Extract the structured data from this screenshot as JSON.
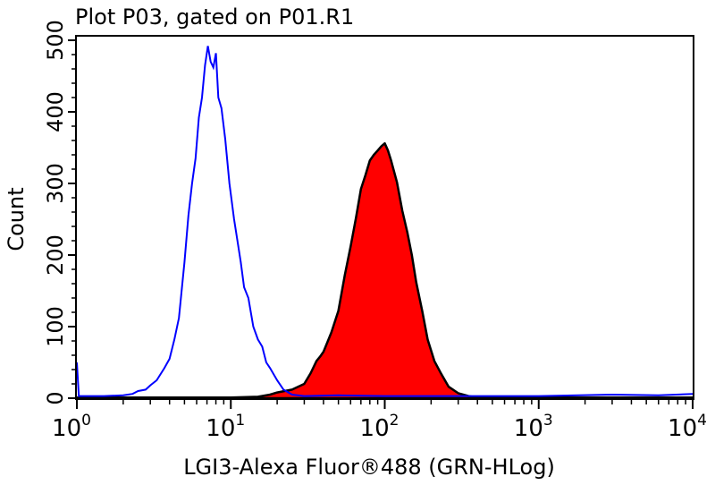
{
  "chart_data": {
    "type": "area",
    "title": "Plot P03, gated on P01.R1",
    "xlabel": "LGI3-Alexa Fluor®488 (GRN-HLog)",
    "ylabel": "Count",
    "xscale": "log",
    "xlim": [
      1,
      10000
    ],
    "ylim": [
      0,
      500
    ],
    "x_ticks": [
      {
        "base": "10",
        "exp": "0",
        "value": 1
      },
      {
        "base": "10",
        "exp": "1",
        "value": 10
      },
      {
        "base": "10",
        "exp": "2",
        "value": 100
      },
      {
        "base": "10",
        "exp": "3",
        "value": 1000
      },
      {
        "base": "10",
        "exp": "4",
        "value": 10000
      }
    ],
    "y_ticks": [
      "0",
      "100",
      "200",
      "300",
      "400",
      "500"
    ],
    "grid": false,
    "series": [
      {
        "style": "outline",
        "color": "#0000ff",
        "points": [
          [
            1.0,
            50
          ],
          [
            1.03,
            3
          ],
          [
            1.5,
            3
          ],
          [
            2,
            4
          ],
          [
            2.3,
            6
          ],
          [
            2.5,
            10
          ],
          [
            2.8,
            12
          ],
          [
            3,
            18
          ],
          [
            3.3,
            25
          ],
          [
            3.7,
            42
          ],
          [
            4,
            55
          ],
          [
            4.3,
            82
          ],
          [
            4.6,
            112
          ],
          [
            5.0,
            190
          ],
          [
            5.3,
            255
          ],
          [
            5.6,
            300
          ],
          [
            5.9,
            335
          ],
          [
            6.2,
            392
          ],
          [
            6.5,
            420
          ],
          [
            6.8,
            465
          ],
          [
            7.1,
            492
          ],
          [
            7.4,
            470
          ],
          [
            7.7,
            462
          ],
          [
            8.0,
            482
          ],
          [
            8.3,
            420
          ],
          [
            8.7,
            405
          ],
          [
            9.2,
            362
          ],
          [
            9.8,
            300
          ],
          [
            10.5,
            250
          ],
          [
            11,
            222
          ],
          [
            11.6,
            190
          ],
          [
            12.2,
            155
          ],
          [
            13,
            140
          ],
          [
            14,
            100
          ],
          [
            15,
            82
          ],
          [
            16,
            72
          ],
          [
            17,
            50
          ],
          [
            18,
            42
          ],
          [
            20,
            25
          ],
          [
            22,
            12
          ],
          [
            25,
            5
          ],
          [
            30,
            3
          ],
          [
            50,
            4
          ],
          [
            100,
            3
          ],
          [
            300,
            3
          ],
          [
            1000,
            3
          ],
          [
            3000,
            5
          ],
          [
            6000,
            4
          ],
          [
            10000,
            6
          ]
        ]
      },
      {
        "style": "filled",
        "color": "#ff0000",
        "outline_color": "#000000",
        "points": [
          [
            1,
            1
          ],
          [
            10,
            1
          ],
          [
            15,
            2
          ],
          [
            18,
            5
          ],
          [
            20,
            8
          ],
          [
            25,
            12
          ],
          [
            30,
            20
          ],
          [
            33,
            35
          ],
          [
            36,
            52
          ],
          [
            38,
            58
          ],
          [
            40,
            65
          ],
          [
            45,
            92
          ],
          [
            50,
            122
          ],
          [
            55,
            172
          ],
          [
            60,
            212
          ],
          [
            65,
            252
          ],
          [
            70,
            292
          ],
          [
            75,
            312
          ],
          [
            80,
            332
          ],
          [
            85,
            340
          ],
          [
            90,
            346
          ],
          [
            95,
            352
          ],
          [
            100,
            356
          ],
          [
            105,
            346
          ],
          [
            110,
            332
          ],
          [
            120,
            302
          ],
          [
            130,
            262
          ],
          [
            140,
            232
          ],
          [
            150,
            200
          ],
          [
            160,
            162
          ],
          [
            175,
            122
          ],
          [
            190,
            82
          ],
          [
            210,
            52
          ],
          [
            230,
            36
          ],
          [
            260,
            16
          ],
          [
            300,
            7
          ],
          [
            350,
            3
          ],
          [
            400,
            1
          ],
          [
            10000,
            1
          ]
        ]
      }
    ]
  }
}
